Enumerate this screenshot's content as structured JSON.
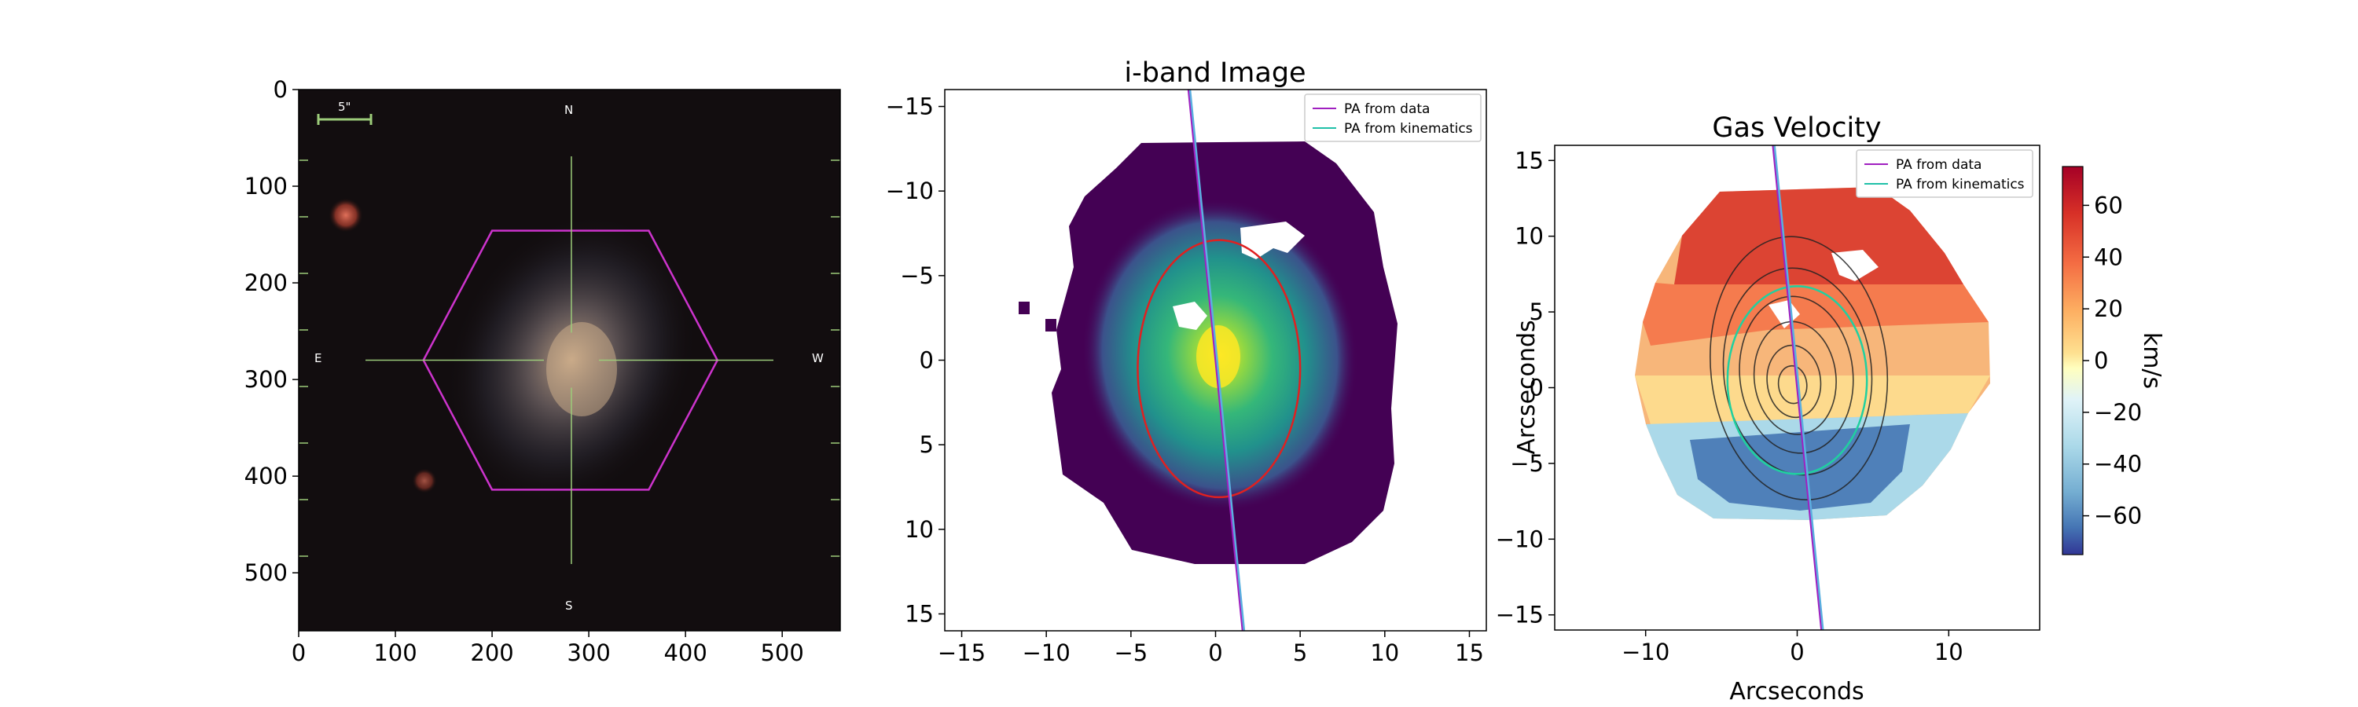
{
  "chart_data": [
    {
      "type": "image",
      "panel": "sdss-image",
      "xlim": [
        0,
        560
      ],
      "ylim": [
        560,
        0
      ],
      "xticks": [
        0,
        100,
        200,
        300,
        400,
        500
      ],
      "yticks": [
        0,
        100,
        200,
        300,
        400,
        500
      ],
      "scale_bar_label": "5\"",
      "compass": {
        "north": "N",
        "south": "S",
        "east": "E",
        "west": "W"
      },
      "hexagon_vertices": [
        [
          129,
          280
        ],
        [
          200,
          146
        ],
        [
          362,
          146
        ],
        [
          433,
          280
        ],
        [
          362,
          414
        ],
        [
          200,
          414
        ]
      ],
      "galaxy_center": [
        282,
        280
      ],
      "hex_color": "#cc33cc",
      "crosshair_color": "#9ccc7a"
    },
    {
      "type": "heatmap",
      "panel": "i-band",
      "title": "i-band Image",
      "xlim": [
        -16,
        16
      ],
      "ylim": [
        16,
        -16
      ],
      "xticks": [
        -15,
        -10,
        -5,
        0,
        5,
        10,
        15
      ],
      "yticks": [
        -15,
        -10,
        -5,
        0,
        5,
        10,
        15
      ],
      "colormap": "viridis",
      "legend": [
        {
          "name": "PA from data",
          "color": "#a020c0"
        },
        {
          "name": "PA from kinematics",
          "color": "#20c0a8"
        }
      ],
      "legend_position": "top-right",
      "ellipse": {
        "center": [
          0.2,
          0.5
        ],
        "half_width": 4.8,
        "half_height": 7.6,
        "color": "#e02020"
      },
      "pa_line": {
        "x1": -1.6,
        "y1": -16,
        "x2": 1.6,
        "y2": 16
      }
    },
    {
      "type": "heatmap",
      "panel": "gas-velocity",
      "title": "Gas Velocity",
      "xlabel": "Arcseconds",
      "ylabel": "Arcseconds",
      "xlim": [
        -16,
        16
      ],
      "ylim": [
        -16,
        16
      ],
      "xticks": [
        -10,
        0,
        10
      ],
      "yticks": [
        15,
        10,
        5,
        0,
        -5,
        -10,
        -15
      ],
      "colormap": "RdYlBu_r",
      "legend": [
        {
          "name": "PA from data",
          "color": "#a020c0"
        },
        {
          "name": "PA from kinematics",
          "color": "#20c0a8"
        }
      ],
      "legend_position": "top-right",
      "colorbar": {
        "label": "km/s",
        "range": [
          -75,
          75
        ],
        "ticks": [
          60,
          40,
          20,
          0,
          -20,
          -40,
          -60
        ]
      },
      "ellipse": {
        "center": [
          0,
          0.5
        ],
        "half_width": 4.6,
        "half_height": 6.2,
        "color": "#20d0a0"
      },
      "pa_line": {
        "x1": -1.6,
        "y1": 16,
        "x2": 1.6,
        "y2": -16
      }
    }
  ]
}
